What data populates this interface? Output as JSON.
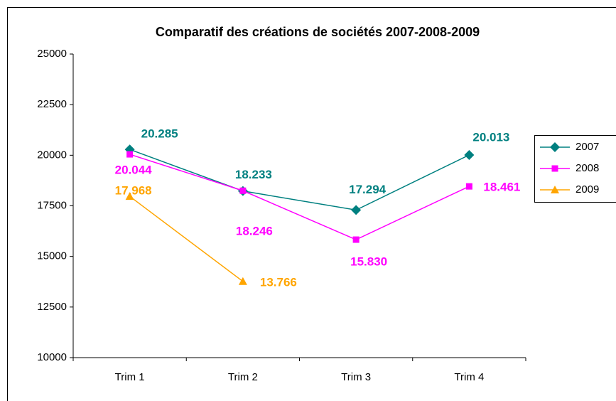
{
  "chart_data": {
    "type": "line",
    "title": "Comparatif des créations de sociétés 2007-2008-2009",
    "categories": [
      "Trim 1",
      "Trim 2",
      "Trim 3",
      "Trim 4"
    ],
    "series": [
      {
        "name": "2007",
        "color": "#008080",
        "marker": "diamond",
        "values": [
          20285,
          18233,
          17294,
          20013
        ],
        "value_labels": [
          "20.285",
          "18.233",
          "17.294",
          "20.013"
        ]
      },
      {
        "name": "2008",
        "color": "#ff00ff",
        "marker": "square",
        "values": [
          20044,
          18246,
          15830,
          18461
        ],
        "value_labels": [
          "20.044",
          "18.246",
          "15.830",
          "18.461"
        ]
      },
      {
        "name": "2009",
        "color": "#ffa500",
        "marker": "triangle",
        "values": [
          17968,
          13766,
          null,
          null
        ],
        "value_labels": [
          "17.968",
          "13.766",
          null,
          null
        ]
      }
    ],
    "ylim": [
      10000,
      25000
    ],
    "yticks": [
      10000,
      12500,
      15000,
      17500,
      20000,
      22500,
      25000
    ],
    "grid": false,
    "legend": "right"
  }
}
